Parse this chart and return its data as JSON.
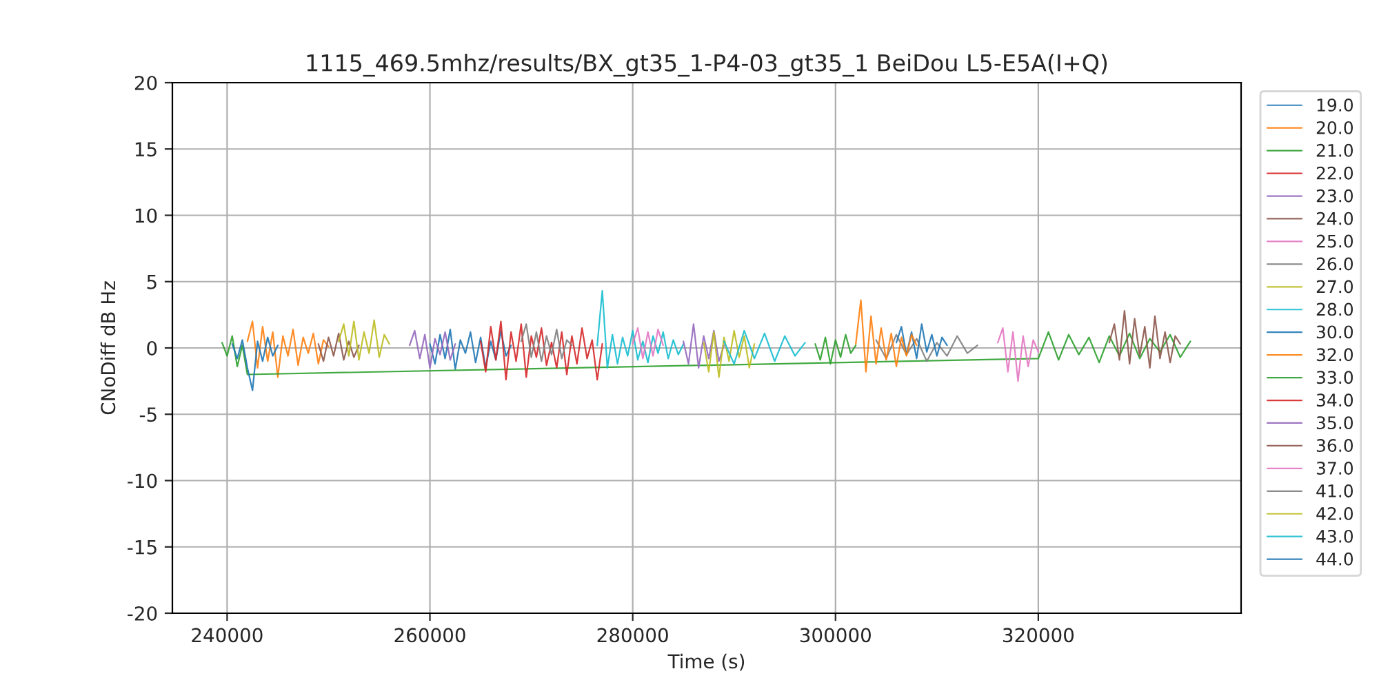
{
  "chart_data": {
    "type": "line",
    "title": "1115_469.5mhz/results/BX_gt35_1-P4-03_gt35_1 BeiDou L5-E5A(I+Q)",
    "xlabel": "Time (s)",
    "ylabel": "CNoDiff dB Hz",
    "xlim": [
      234600,
      340000
    ],
    "xticks": [
      240000,
      260000,
      280000,
      300000,
      320000
    ],
    "ylim": [
      -20,
      20
    ],
    "yticks": [
      -20,
      -15,
      -10,
      -5,
      0,
      5,
      10,
      15,
      20
    ],
    "grid": true,
    "legend": "right",
    "series": [
      {
        "name": "19.0",
        "color": "#1f77b4",
        "x": [
          260000,
          260500,
          261000,
          261500,
          262000,
          262500,
          263000,
          263500,
          264000,
          264500,
          265000,
          265500,
          266000,
          266500,
          267000,
          267500,
          268000
        ],
        "values": [
          0.3,
          -1.2,
          1.0,
          -0.8,
          1.4,
          -1.6,
          0.6,
          -0.4,
          1.2,
          -1.1,
          0.8,
          -1.5,
          0.5,
          -0.9,
          1.3,
          -0.6,
          0.2
        ]
      },
      {
        "name": "20.0",
        "color": "#ff7f0e",
        "x": [
          242000,
          242500,
          243000,
          243500,
          244000,
          244500,
          245000,
          245500,
          246000,
          246500,
          247000,
          247500,
          248000,
          248500,
          249000,
          249500,
          250000
        ],
        "values": [
          0.5,
          2.0,
          -1.5,
          1.6,
          -1.0,
          1.2,
          -2.2,
          0.9,
          -0.6,
          1.4,
          -1.3,
          0.8,
          -0.4,
          1.1,
          -1.2,
          0.6,
          0.1
        ]
      },
      {
        "name": "21.0",
        "color": "#2ca02c",
        "x": [
          239500,
          240000,
          240500,
          241000,
          241500,
          242000,
          320000,
          321000,
          322000,
          323000,
          324000,
          325000,
          326000,
          327000,
          328000,
          329000,
          330000,
          331000,
          332000,
          333000,
          334000,
          335000
        ],
        "values": [
          0.4,
          -0.6,
          0.9,
          -1.4,
          0.2,
          -2.0,
          -0.8,
          1.2,
          -0.9,
          1.0,
          -0.5,
          0.8,
          -1.1,
          0.9,
          -0.6,
          1.1,
          -0.8,
          0.7,
          -0.3,
          1.0,
          -0.7,
          0.5
        ]
      },
      {
        "name": "22.0",
        "color": "#d62728",
        "x": [
          265000,
          265500,
          266000,
          266500,
          267000,
          267500,
          268000,
          268500,
          269000,
          269500,
          270000,
          270500,
          271000,
          271500,
          272000
        ],
        "values": [
          0.5,
          -1.8,
          1.6,
          -0.9,
          2.0,
          -2.4,
          1.2,
          -1.0,
          1.8,
          -2.2,
          0.9,
          -0.7,
          1.5,
          -1.3,
          0.4
        ]
      },
      {
        "name": "23.0",
        "color": "#9467bd",
        "x": [
          258000,
          258500,
          259000,
          259500,
          260000,
          260500,
          261000,
          261500,
          262000,
          262500
        ],
        "values": [
          0.2,
          1.3,
          -0.8,
          1.0,
          -1.5,
          0.7,
          -0.5,
          1.2,
          -0.9,
          0.3
        ]
      },
      {
        "name": "24.0",
        "color": "#8c564b",
        "x": [
          249000,
          249500,
          250000,
          250500,
          251000,
          251500,
          252000,
          252500,
          253000
        ],
        "values": [
          0.3,
          -1.0,
          0.8,
          -0.6,
          1.1,
          -0.9,
          0.5,
          -0.7,
          0.2
        ]
      },
      {
        "name": "25.0",
        "color": "#e377c2",
        "x": [
          316000,
          316500,
          317000,
          317500,
          318000,
          318500,
          319000,
          319500,
          320000
        ],
        "values": [
          0.4,
          1.5,
          -1.8,
          1.2,
          -2.5,
          0.9,
          -1.4,
          0.6,
          -0.3
        ]
      },
      {
        "name": "26.0",
        "color": "#7f7f7f",
        "x": [
          304000,
          305000,
          306000,
          307000,
          308000,
          309000,
          310000,
          311000,
          312000,
          313000,
          314000
        ],
        "values": [
          0.6,
          -0.8,
          1.0,
          -0.5,
          0.7,
          -1.0,
          0.4,
          -0.6,
          0.9,
          -0.4,
          0.2
        ]
      },
      {
        "name": "27.0",
        "color": "#bcbd22",
        "x": [
          251000,
          251500,
          252000,
          252500,
          253000,
          253500,
          254000,
          254500,
          255000,
          255500,
          256000
        ],
        "values": [
          0.5,
          1.8,
          -0.6,
          2.0,
          -0.9,
          1.2,
          -0.4,
          2.1,
          -0.7,
          1.0,
          0.3
        ]
      },
      {
        "name": "28.0",
        "color": "#17becf",
        "x": [
          276500,
          277000,
          277500,
          278000,
          278500,
          279000,
          279500,
          280000,
          280500,
          281000,
          281500,
          282000,
          282500,
          283000,
          283500,
          284000,
          284500,
          285000
        ],
        "values": [
          0.2,
          4.3,
          -1.5,
          1.0,
          -1.2,
          0.8,
          -0.6,
          1.3,
          -0.9,
          0.5,
          -1.1,
          0.9,
          -0.4,
          1.2,
          -0.8,
          0.6,
          -0.5,
          0.3
        ]
      },
      {
        "name": "30.0",
        "color": "#1f77b4",
        "x": [
          306000,
          306500,
          307000,
          307500,
          308000,
          308500,
          309000,
          309500,
          310000,
          310500,
          311000
        ],
        "values": [
          0.4,
          1.6,
          -0.5,
          1.2,
          -0.8,
          1.8,
          -0.3,
          1.0,
          -0.6,
          0.8,
          0.2
        ]
      },
      {
        "name": "32.0",
        "color": "#ff7f0e",
        "x": [
          302000,
          302500,
          303000,
          303500,
          304000,
          304500,
          305000,
          305500,
          306000,
          306500,
          307000,
          307500,
          308000
        ],
        "values": [
          0.3,
          3.6,
          -1.8,
          2.4,
          -1.2,
          1.5,
          -0.9,
          1.1,
          -1.4,
          0.8,
          -0.6,
          1.0,
          0.2
        ]
      },
      {
        "name": "33.0",
        "color": "#2ca02c",
        "x": [
          298000,
          298500,
          299000,
          299500,
          300000,
          300500,
          301000,
          301500,
          302000
        ],
        "values": [
          0.3,
          -0.9,
          0.8,
          -1.2,
          0.6,
          -0.7,
          1.0,
          -0.4,
          0.2
        ]
      },
      {
        "name": "34.0",
        "color": "#d62728",
        "x": [
          272000,
          272500,
          273000,
          273500,
          274000,
          274500,
          275000,
          275500,
          276000,
          276500,
          277000
        ],
        "values": [
          0.4,
          -1.5,
          1.2,
          -2.0,
          0.9,
          -1.2,
          1.5,
          -0.8,
          0.6,
          -2.4,
          0.3
        ]
      },
      {
        "name": "35.0",
        "color": "#9467bd",
        "x": [
          285000,
          285500,
          286000,
          286500,
          287000,
          287500,
          288000,
          288500,
          289000
        ],
        "values": [
          0.5,
          -1.2,
          1.8,
          -1.5,
          0.9,
          -0.8,
          1.3,
          -1.0,
          0.2
        ]
      },
      {
        "name": "36.0",
        "color": "#8c564b",
        "x": [
          327000,
          327500,
          328000,
          328500,
          329000,
          329500,
          330000,
          330500,
          331000,
          331500,
          332000,
          332500,
          333000,
          333500,
          334000
        ],
        "values": [
          0.4,
          1.8,
          -0.9,
          2.8,
          -1.2,
          2.2,
          -0.6,
          1.6,
          -1.5,
          2.4,
          -0.8,
          1.2,
          -1.1,
          0.9,
          0.3
        ]
      },
      {
        "name": "37.0",
        "color": "#e377c2",
        "x": [
          280000,
          280500,
          281000,
          281500,
          282000,
          282500,
          283000
        ],
        "values": [
          0.3,
          1.5,
          -0.8,
          1.2,
          -0.6,
          1.4,
          0.2
        ]
      },
      {
        "name": "41.0",
        "color": "#7f7f7f",
        "x": [
          269000,
          269500,
          270000,
          270500,
          271000,
          271500,
          272000,
          272500,
          273000,
          273500,
          274000
        ],
        "values": [
          0.5,
          1.8,
          -0.7,
          1.2,
          -1.0,
          0.9,
          -0.5,
          1.4,
          -0.8,
          0.6,
          0.2
        ]
      },
      {
        "name": "42.0",
        "color": "#bcbd22",
        "x": [
          287000,
          287500,
          288000,
          288500,
          289000,
          289500,
          290000,
          290500,
          291000,
          291500,
          292000
        ],
        "values": [
          0.4,
          -1.8,
          1.2,
          -2.2,
          0.8,
          -1.0,
          1.3,
          -0.7,
          0.9,
          -1.5,
          0.3
        ]
      },
      {
        "name": "43.0",
        "color": "#17becf",
        "x": [
          289000,
          290000,
          291000,
          292000,
          293000,
          294000,
          295000,
          296000,
          297000
        ],
        "values": [
          0.5,
          -1.2,
          1.3,
          -0.8,
          1.1,
          -1.0,
          0.9,
          -0.6,
          0.4
        ]
      },
      {
        "name": "44.0",
        "color": "#1f77b4",
        "x": [
          240500,
          241000,
          241500,
          242000,
          242500,
          243000,
          243500,
          244000,
          244500,
          245000
        ],
        "values": [
          0.3,
          -0.8,
          0.6,
          -1.5,
          -3.2,
          0.5,
          -1.0,
          0.8,
          -0.6,
          0.2
        ]
      }
    ]
  }
}
